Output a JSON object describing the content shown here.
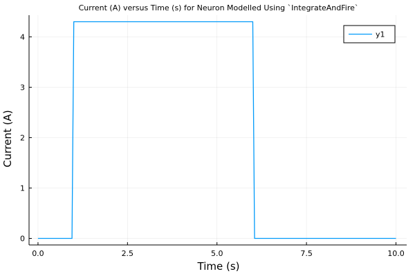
{
  "chart_data": {
    "type": "line",
    "title": "Current (A) versus Time (s) for Neuron Modelled Using `IntegrateAndFire`",
    "xlabel": "Time (s)",
    "ylabel": "Current (A)",
    "xlim": [
      -0.25,
      10.3
    ],
    "ylim": [
      -0.13,
      4.43
    ],
    "xticks": [
      0.0,
      2.5,
      5.0,
      7.5,
      10.0
    ],
    "xtick_labels": [
      "0.0",
      "2.5",
      "5.0",
      "7.5",
      "10.0"
    ],
    "yticks": [
      0,
      1,
      2,
      3,
      4
    ],
    "ytick_labels": [
      "0",
      "1",
      "2",
      "3",
      "4"
    ],
    "grid": true,
    "legend_position": "top-right",
    "series": [
      {
        "name": "y1",
        "color": "#009AFA",
        "x": [
          0.0,
          0.95,
          1.0,
          6.0,
          6.05,
          10.0
        ],
        "y": [
          0.0,
          0.0,
          4.3,
          4.3,
          0.0,
          0.0
        ]
      }
    ]
  }
}
